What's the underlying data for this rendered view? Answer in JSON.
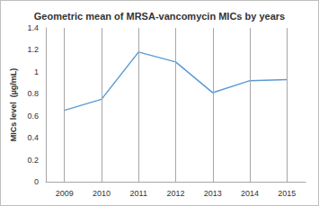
{
  "chart_data": {
    "type": "line",
    "title": "Geometric mean of MRSA-vancomycin MICs by years",
    "y_label": "MICs level  (µg/mL)",
    "categories": [
      "2009",
      "2010",
      "2011",
      "2012",
      "2013",
      "2014",
      "2015"
    ],
    "values": [
      0.65,
      0.75,
      1.18,
      1.09,
      0.81,
      0.92,
      0.93
    ],
    "color": "#5b9bd5",
    "ylim": [
      0,
      1.4
    ],
    "yticks": [
      0,
      0.2,
      0.4,
      0.6,
      0.8,
      1,
      1.2,
      1.4
    ],
    "grid": true
  }
}
